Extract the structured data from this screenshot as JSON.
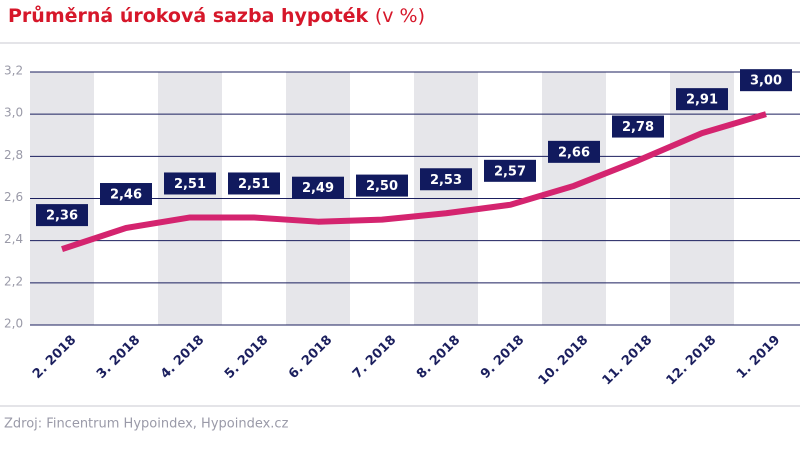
{
  "chart_data": {
    "type": "line",
    "title": "Průměrná úroková sazba hypoték",
    "unit": "(v %)",
    "source": "Zdroj: Fincentrum Hypoindex, Hypoindex.cz",
    "categories": [
      "2. 2018",
      "3. 2018",
      "4. 2018",
      "5. 2018",
      "6. 2018",
      "7. 2018",
      "8. 2018",
      "9. 2018",
      "10. 2018",
      "11. 2018",
      "12. 2018",
      "1. 2019"
    ],
    "series": [
      {
        "name": "Průměrná úroková sazba",
        "color": "#d4246f",
        "values": [
          2.36,
          2.46,
          2.51,
          2.51,
          2.49,
          2.5,
          2.53,
          2.57,
          2.66,
          2.78,
          2.91,
          3.0
        ],
        "value_labels": [
          "2,36",
          "2,46",
          "2,51",
          "2,51",
          "2,49",
          "2,50",
          "2,53",
          "2,57",
          "2,66",
          "2,78",
          "2,91",
          "3,00"
        ]
      }
    ],
    "ylim": [
      2.0,
      3.2
    ],
    "yticks": [
      {
        "value": 2.0,
        "label": "2,0"
      },
      {
        "value": 2.2,
        "label": "2,2"
      },
      {
        "value": 2.4,
        "label": "2,4"
      },
      {
        "value": 2.6,
        "label": "2,6"
      },
      {
        "value": 2.8,
        "label": "2,8"
      },
      {
        "value": 3.0,
        "label": "3,0"
      },
      {
        "value": 3.2,
        "label": "3,2"
      }
    ],
    "grid": true
  }
}
